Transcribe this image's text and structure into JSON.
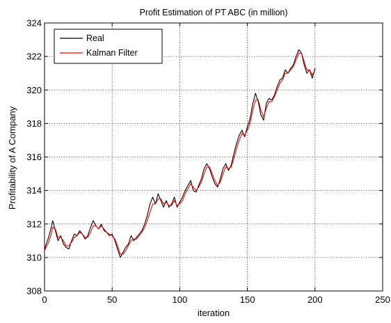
{
  "chart_data": {
    "type": "line",
    "title": "Profit Estimation of PT ABC (in million)",
    "xlabel": "iteration",
    "ylabel": "Profitability of A Company",
    "xlim": [
      0,
      250
    ],
    "ylim": [
      308,
      324
    ],
    "xticks": [
      0,
      50,
      100,
      150,
      200,
      250
    ],
    "yticks": [
      308,
      310,
      312,
      314,
      316,
      318,
      320,
      322,
      324
    ],
    "grid": "dotted",
    "legend_position": "top-left",
    "series": [
      {
        "name": "Real",
        "color": "#000000",
        "points": [
          [
            0,
            310.5
          ],
          [
            3,
            311.2
          ],
          [
            5,
            311.8
          ],
          [
            6,
            312.2
          ],
          [
            8,
            311.6
          ],
          [
            10,
            311.0
          ],
          [
            12,
            311.3
          ],
          [
            14,
            310.8
          ],
          [
            16,
            310.6
          ],
          [
            18,
            310.5
          ],
          [
            20,
            311.0
          ],
          [
            22,
            311.4
          ],
          [
            24,
            311.3
          ],
          [
            26,
            311.6
          ],
          [
            28,
            311.4
          ],
          [
            30,
            311.1
          ],
          [
            32,
            311.3
          ],
          [
            34,
            311.8
          ],
          [
            36,
            312.2
          ],
          [
            38,
            311.9
          ],
          [
            40,
            311.7
          ],
          [
            42,
            312.0
          ],
          [
            44,
            311.6
          ],
          [
            46,
            311.5
          ],
          [
            48,
            311.3
          ],
          [
            50,
            311.4
          ],
          [
            52,
            311.0
          ],
          [
            54,
            310.5
          ],
          [
            56,
            310.0
          ],
          [
            58,
            310.3
          ],
          [
            60,
            310.6
          ],
          [
            62,
            310.8
          ],
          [
            64,
            311.3
          ],
          [
            66,
            311.0
          ],
          [
            68,
            311.2
          ],
          [
            70,
            311.4
          ],
          [
            72,
            311.6
          ],
          [
            74,
            312.0
          ],
          [
            76,
            312.5
          ],
          [
            78,
            313.2
          ],
          [
            80,
            313.6
          ],
          [
            82,
            313.2
          ],
          [
            84,
            313.8
          ],
          [
            86,
            313.4
          ],
          [
            88,
            313.0
          ],
          [
            90,
            313.4
          ],
          [
            92,
            313.0
          ],
          [
            94,
            313.2
          ],
          [
            96,
            313.6
          ],
          [
            98,
            313.0
          ],
          [
            100,
            313.3
          ],
          [
            102,
            313.6
          ],
          [
            104,
            314.0
          ],
          [
            106,
            314.3
          ],
          [
            108,
            314.6
          ],
          [
            110,
            314.0
          ],
          [
            112,
            313.9
          ],
          [
            114,
            314.3
          ],
          [
            116,
            314.7
          ],
          [
            118,
            315.3
          ],
          [
            120,
            315.6
          ],
          [
            122,
            315.3
          ],
          [
            124,
            314.8
          ],
          [
            126,
            314.4
          ],
          [
            128,
            314.2
          ],
          [
            130,
            314.7
          ],
          [
            132,
            315.3
          ],
          [
            134,
            315.6
          ],
          [
            136,
            315.2
          ],
          [
            138,
            315.5
          ],
          [
            140,
            316.2
          ],
          [
            142,
            316.8
          ],
          [
            144,
            317.3
          ],
          [
            146,
            317.6
          ],
          [
            148,
            317.2
          ],
          [
            150,
            317.8
          ],
          [
            152,
            318.3
          ],
          [
            154,
            319.2
          ],
          [
            156,
            319.8
          ],
          [
            158,
            319.3
          ],
          [
            160,
            318.5
          ],
          [
            162,
            318.2
          ],
          [
            164,
            319.2
          ],
          [
            166,
            319.5
          ],
          [
            168,
            319.4
          ],
          [
            170,
            319.7
          ],
          [
            172,
            320.2
          ],
          [
            174,
            320.6
          ],
          [
            176,
            320.7
          ],
          [
            178,
            321.2
          ],
          [
            180,
            321.0
          ],
          [
            182,
            321.3
          ],
          [
            184,
            321.5
          ],
          [
            186,
            322.0
          ],
          [
            188,
            322.4
          ],
          [
            190,
            322.2
          ],
          [
            192,
            321.5
          ],
          [
            194,
            321.0
          ],
          [
            196,
            321.2
          ],
          [
            198,
            320.7
          ],
          [
            200,
            321.3
          ]
        ]
      },
      {
        "name": "Kalman Filter",
        "color": "#ff0000",
        "points": [
          [
            0,
            310.4
          ],
          [
            3,
            310.9
          ],
          [
            5,
            311.4
          ],
          [
            6,
            311.8
          ],
          [
            8,
            311.7
          ],
          [
            10,
            311.2
          ],
          [
            12,
            311.2
          ],
          [
            14,
            311.0
          ],
          [
            16,
            310.7
          ],
          [
            18,
            310.7
          ],
          [
            20,
            310.9
          ],
          [
            22,
            311.2
          ],
          [
            24,
            311.3
          ],
          [
            26,
            311.5
          ],
          [
            28,
            311.4
          ],
          [
            30,
            311.2
          ],
          [
            32,
            311.2
          ],
          [
            34,
            311.5
          ],
          [
            36,
            311.9
          ],
          [
            38,
            311.9
          ],
          [
            40,
            311.7
          ],
          [
            42,
            311.9
          ],
          [
            44,
            311.7
          ],
          [
            46,
            311.5
          ],
          [
            48,
            311.4
          ],
          [
            50,
            311.3
          ],
          [
            52,
            311.1
          ],
          [
            54,
            310.7
          ],
          [
            56,
            310.2
          ],
          [
            58,
            310.2
          ],
          [
            60,
            310.4
          ],
          [
            62,
            310.7
          ],
          [
            64,
            311.0
          ],
          [
            66,
            311.1
          ],
          [
            68,
            311.1
          ],
          [
            70,
            311.3
          ],
          [
            72,
            311.5
          ],
          [
            74,
            311.8
          ],
          [
            76,
            312.2
          ],
          [
            78,
            312.7
          ],
          [
            80,
            313.2
          ],
          [
            82,
            313.2
          ],
          [
            84,
            313.5
          ],
          [
            86,
            313.5
          ],
          [
            88,
            313.2
          ],
          [
            90,
            313.3
          ],
          [
            92,
            313.1
          ],
          [
            94,
            313.1
          ],
          [
            96,
            313.4
          ],
          [
            98,
            313.1
          ],
          [
            100,
            313.2
          ],
          [
            102,
            313.4
          ],
          [
            104,
            313.8
          ],
          [
            106,
            314.1
          ],
          [
            108,
            314.4
          ],
          [
            110,
            314.2
          ],
          [
            112,
            314.0
          ],
          [
            114,
            314.2
          ],
          [
            116,
            314.5
          ],
          [
            118,
            315.0
          ],
          [
            120,
            315.4
          ],
          [
            122,
            315.4
          ],
          [
            124,
            315.0
          ],
          [
            126,
            314.6
          ],
          [
            128,
            314.3
          ],
          [
            130,
            314.5
          ],
          [
            132,
            315.0
          ],
          [
            134,
            315.4
          ],
          [
            136,
            315.3
          ],
          [
            138,
            315.4
          ],
          [
            140,
            315.9
          ],
          [
            142,
            316.5
          ],
          [
            144,
            317.0
          ],
          [
            146,
            317.4
          ],
          [
            148,
            317.3
          ],
          [
            150,
            317.6
          ],
          [
            152,
            318.0
          ],
          [
            154,
            318.8
          ],
          [
            156,
            319.4
          ],
          [
            158,
            319.4
          ],
          [
            160,
            318.8
          ],
          [
            162,
            318.4
          ],
          [
            164,
            318.9
          ],
          [
            166,
            319.3
          ],
          [
            168,
            319.3
          ],
          [
            170,
            319.6
          ],
          [
            172,
            320.0
          ],
          [
            174,
            320.4
          ],
          [
            176,
            320.6
          ],
          [
            178,
            321.0
          ],
          [
            180,
            321.0
          ],
          [
            182,
            321.2
          ],
          [
            184,
            321.4
          ],
          [
            186,
            321.8
          ],
          [
            188,
            322.2
          ],
          [
            190,
            322.2
          ],
          [
            192,
            321.7
          ],
          [
            194,
            321.2
          ],
          [
            196,
            321.2
          ],
          [
            198,
            320.9
          ],
          [
            200,
            321.2
          ]
        ]
      }
    ]
  }
}
